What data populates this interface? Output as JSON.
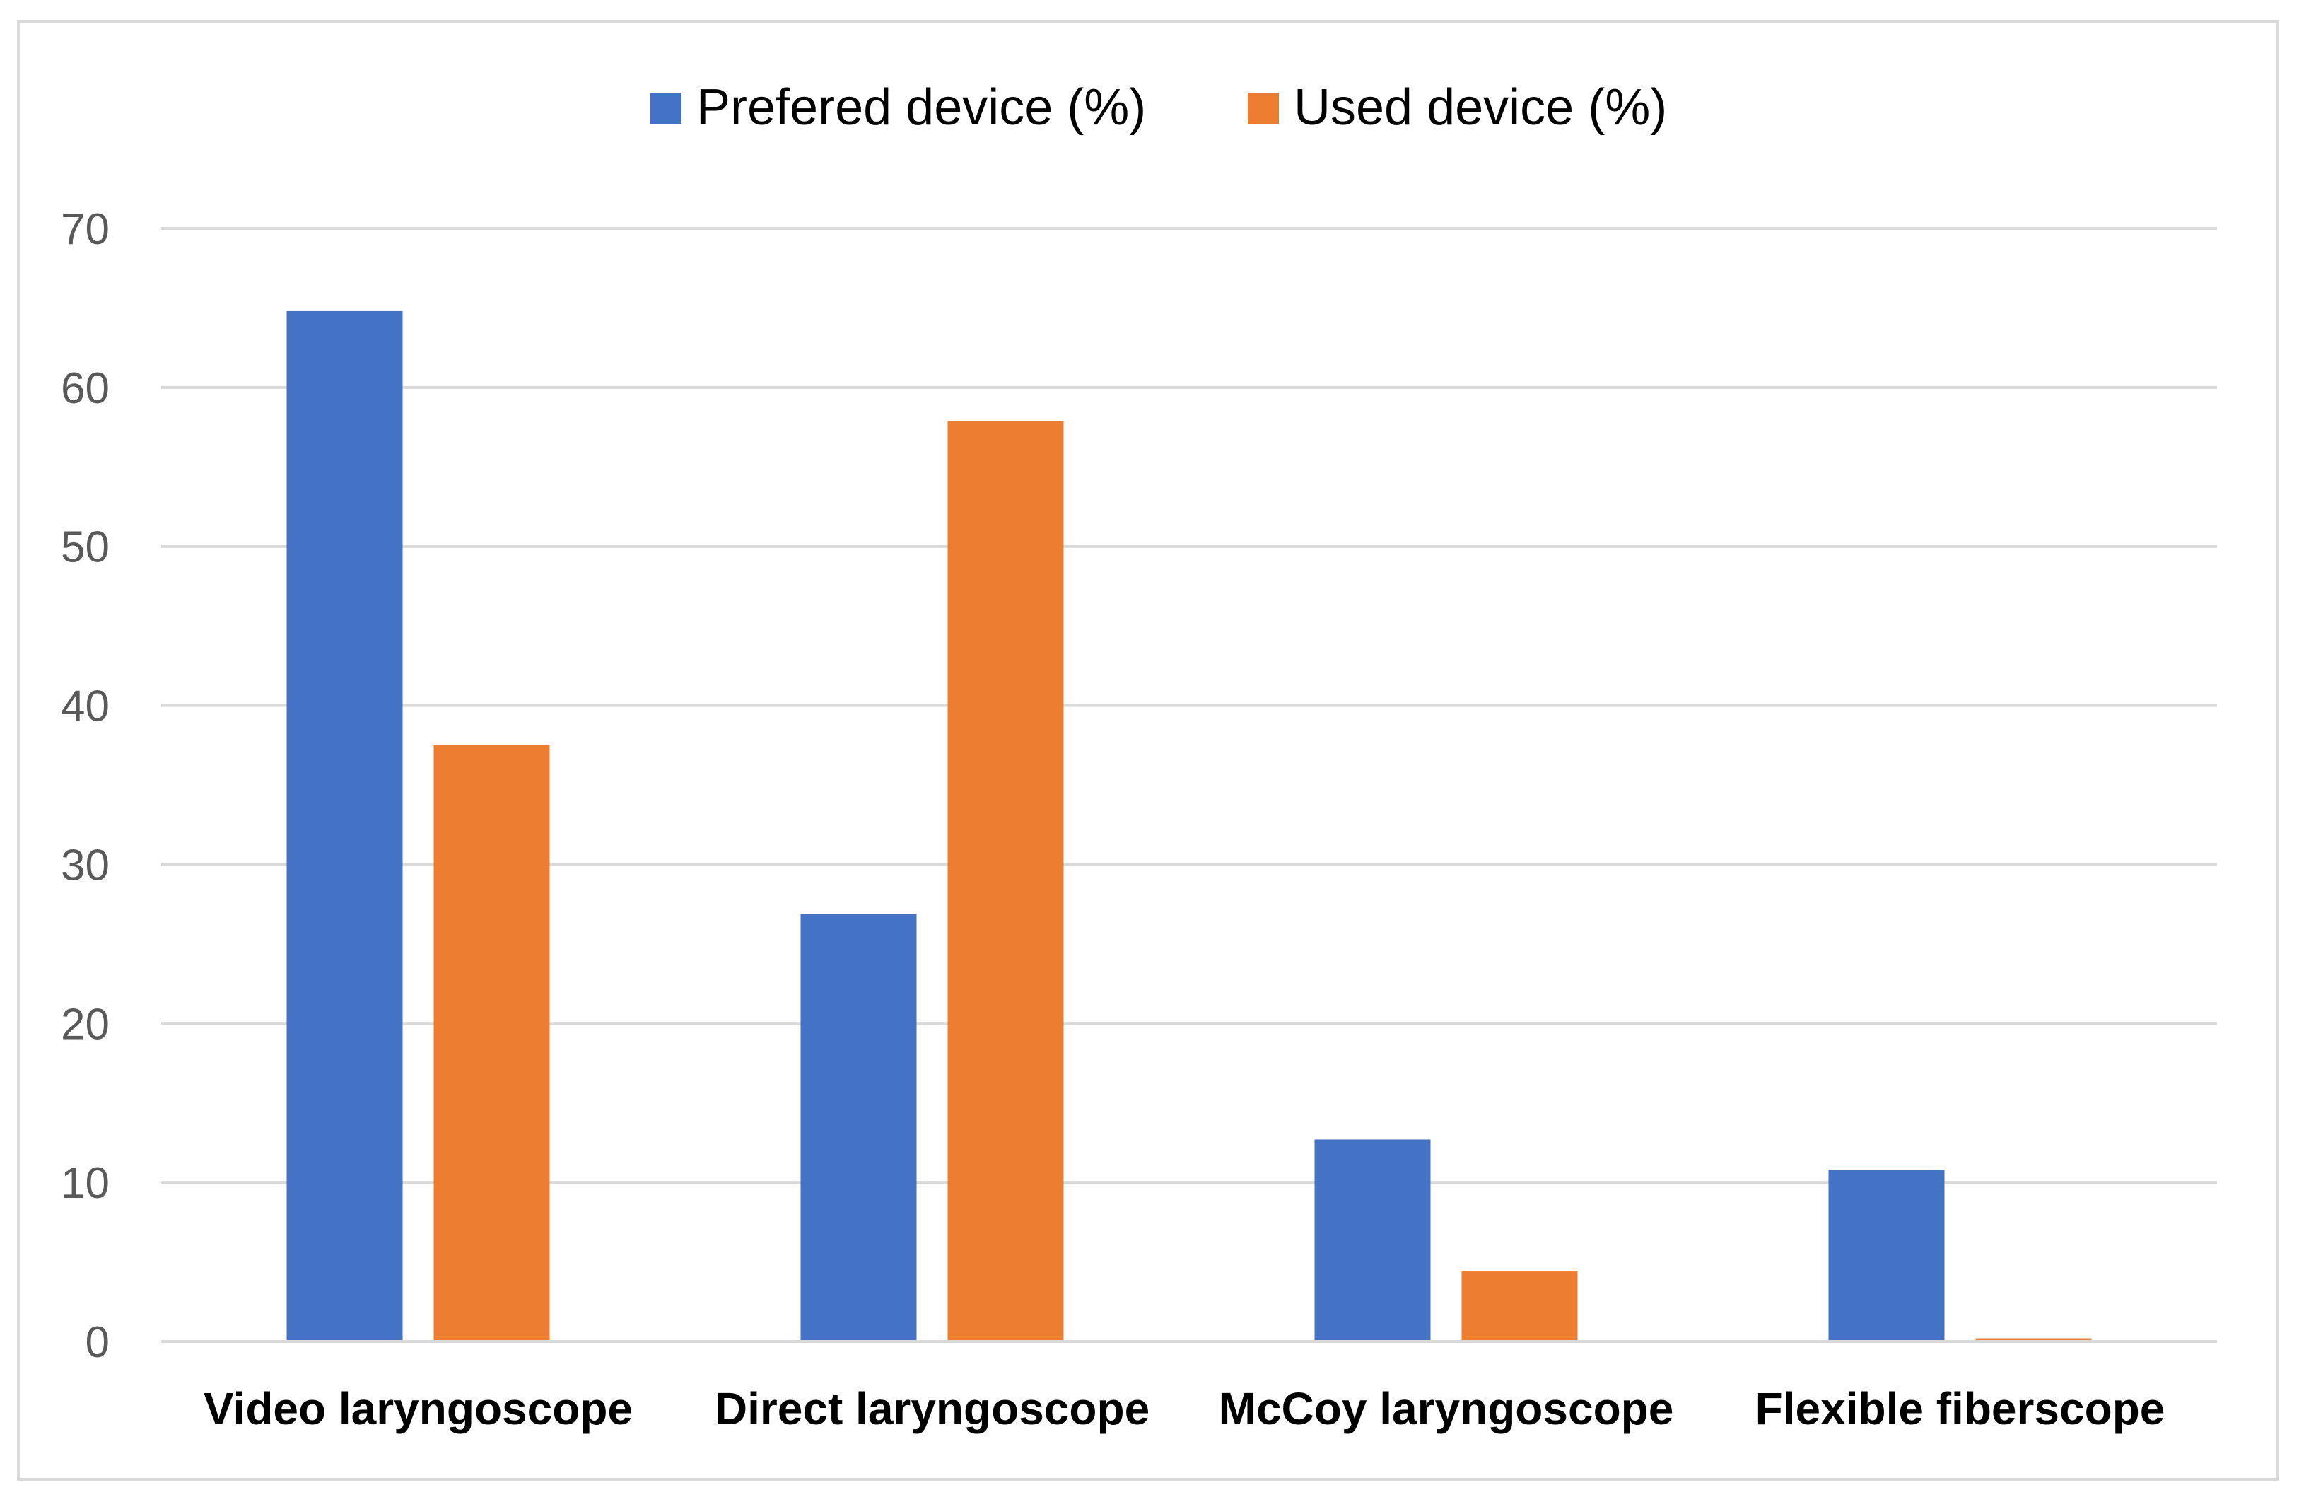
{
  "chart_data": {
    "type": "bar",
    "categories": [
      "Video laryngoscope",
      "Direct laryngoscope",
      "McCoy laryngoscope",
      "Flexible fiberscope"
    ],
    "series": [
      {
        "name": "Prefered device (%)",
        "values": [
          64.8,
          26.9,
          12.7,
          10.8
        ],
        "color": "#4472C4"
      },
      {
        "name": "Used device (%)",
        "values": [
          37.5,
          57.9,
          4.4,
          0.2
        ],
        "color": "#ED7D31"
      }
    ],
    "ylim": [
      0,
      70
    ],
    "yticks": [
      "0",
      "10",
      "20",
      "30",
      "40",
      "50",
      "60",
      "70"
    ],
    "grid": true,
    "legend_position": "top-center",
    "gridline_color": "#d9d9d9"
  }
}
